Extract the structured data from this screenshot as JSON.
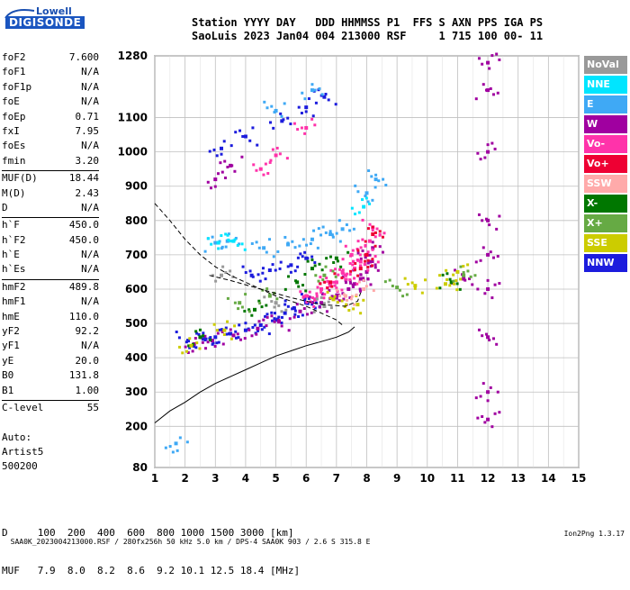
{
  "logo": {
    "line1": "Lowell",
    "line2": "DIGISONDE"
  },
  "header": {
    "line1": "Station YYYY DAY   DDD HHMMSS P1  FFS S AXN PPS IGA PS",
    "line2": "SaoLuis 2023 Jan04 004 213000 RSF     1 715 100 00- 11"
  },
  "params": {
    "group1": [
      {
        "k": "foF2",
        "v": "7.600"
      },
      {
        "k": "foF1",
        "v": "N/A"
      },
      {
        "k": "foF1p",
        "v": "N/A"
      },
      {
        "k": "foE",
        "v": "N/A"
      },
      {
        "k": "foEp",
        "v": "0.71"
      },
      {
        "k": "fxI",
        "v": "7.95"
      },
      {
        "k": "foEs",
        "v": "N/A"
      },
      {
        "k": "fmin",
        "v": "3.20"
      }
    ],
    "group2": [
      {
        "k": "MUF(D)",
        "v": "18.44"
      },
      {
        "k": "M(D)",
        "v": "2.43"
      },
      {
        "k": "D",
        "v": "N/A"
      }
    ],
    "group3": [
      {
        "k": "h`F",
        "v": "450.0"
      },
      {
        "k": "h`F2",
        "v": "450.0"
      },
      {
        "k": "h`E",
        "v": "N/A"
      },
      {
        "k": "h`Es",
        "v": "N/A"
      }
    ],
    "group4": [
      {
        "k": "hmF2",
        "v": "489.8"
      },
      {
        "k": "hmF1",
        "v": "N/A"
      },
      {
        "k": "hmE",
        "v": "110.0"
      },
      {
        "k": "yF2",
        "v": "92.2"
      },
      {
        "k": "yF1",
        "v": "N/A"
      },
      {
        "k": "yE",
        "v": "20.0"
      },
      {
        "k": "B0",
        "v": "131.8"
      },
      {
        "k": "B1",
        "v": "1.00"
      }
    ],
    "group5": [
      {
        "k": "C-level",
        "v": "55"
      }
    ]
  },
  "auto": {
    "line1": "Auto:",
    "line2": "Artist5",
    "line3": "500200"
  },
  "muf_table": {
    "d_line": "D     100  200  400  600  800 1000 1500 3000 [km]",
    "muf_line": "MUF   7.9  8.0  8.2  8.6  9.2 10.1 12.5 18.4 [MHz]"
  },
  "footer": {
    "left": "SAA0K_2023004213000.RSF / 280fx256h 50 kHz 5.0 km / DPS-4 SAA0K 903 / 2.6 S 315.8 E",
    "right": "Ion2Png 1.3.17"
  },
  "legend": [
    {
      "label": "NoVal",
      "color": "#999999"
    },
    {
      "label": "NNE",
      "color": "#00e5ff"
    },
    {
      "label": "E",
      "color": "#3fa9f5"
    },
    {
      "label": "W",
      "color": "#a000a0"
    },
    {
      "label": "Vo-",
      "color": "#ff33aa"
    },
    {
      "label": "Vo+",
      "color": "#ee0033"
    },
    {
      "label": "SSW",
      "color": "#ffaaaa"
    },
    {
      "label": "X-",
      "color": "#007700"
    },
    {
      "label": "X+",
      "color": "#66aa44"
    },
    {
      "label": "SSE",
      "color": "#cccc00"
    },
    {
      "label": "NNW",
      "color": "#1c1cdd"
    }
  ],
  "chart_data": {
    "type": "scatter",
    "xlim": [
      1,
      15
    ],
    "ylim": [
      80,
      1280
    ],
    "x_ticks": [
      "1",
      "2",
      "3",
      "4",
      "5",
      "6",
      "7",
      "8",
      "9",
      "10",
      "11",
      "12",
      "13",
      "14",
      "15"
    ],
    "y_ticks": [
      "80",
      "200",
      "300",
      "400",
      "500",
      "600",
      "700",
      "800",
      "900",
      "1000",
      "1100",
      "1280"
    ],
    "grid": true,
    "series": [
      {
        "name": "NNW",
        "color": "#1c1cdd",
        "points": [
          [
            2.1,
            450
          ],
          [
            2.6,
            455
          ],
          [
            3.0,
            460
          ],
          [
            3.5,
            470
          ],
          [
            4.0,
            480
          ],
          [
            4.5,
            495
          ],
          [
            5.0,
            510
          ],
          [
            5.3,
            530
          ],
          [
            5.6,
            545
          ],
          [
            6.0,
            560
          ],
          [
            6.3,
            570
          ],
          [
            4.2,
            640
          ],
          [
            4.8,
            655
          ],
          [
            5.5,
            670
          ],
          [
            6.0,
            690
          ],
          [
            3.2,
            1010
          ],
          [
            4.0,
            1045
          ],
          [
            5.2,
            1090
          ],
          [
            6.0,
            1130
          ],
          [
            6.6,
            1160
          ]
        ]
      },
      {
        "name": "W",
        "color": "#a000a0",
        "points": [
          [
            2.3,
            440
          ],
          [
            2.9,
            450
          ],
          [
            3.6,
            465
          ],
          [
            4.4,
            485
          ],
          [
            5.1,
            505
          ],
          [
            5.8,
            535
          ],
          [
            6.5,
            560
          ],
          [
            7.0,
            575
          ],
          [
            7.4,
            600
          ],
          [
            7.6,
            615
          ],
          [
            7.8,
            630
          ],
          [
            8.0,
            650
          ],
          [
            8.1,
            680
          ],
          [
            8.2,
            720
          ],
          [
            12.0,
            1260
          ],
          [
            12.0,
            1180
          ],
          [
            12.0,
            1000
          ],
          [
            12.0,
            800
          ],
          [
            12.0,
            700
          ],
          [
            12.0,
            600
          ],
          [
            12.0,
            460
          ],
          [
            12.0,
            300
          ],
          [
            12.0,
            220
          ],
          [
            11.2,
            630
          ],
          [
            3.0,
            920
          ],
          [
            3.5,
            960
          ]
        ]
      },
      {
        "name": "Vo-",
        "color": "#ff33aa",
        "points": [
          [
            6.0,
            580
          ],
          [
            6.5,
            600
          ],
          [
            7.0,
            620
          ],
          [
            7.3,
            640
          ],
          [
            7.6,
            660
          ],
          [
            7.8,
            680
          ],
          [
            8.0,
            700
          ],
          [
            8.1,
            740
          ],
          [
            8.2,
            780
          ],
          [
            7.5,
            700
          ],
          [
            7.2,
            650
          ],
          [
            6.8,
            610
          ],
          [
            6.3,
            570
          ],
          [
            4.5,
            950
          ],
          [
            5.0,
            990
          ],
          [
            6.0,
            1070
          ]
        ]
      },
      {
        "name": "Vo+",
        "color": "#ee0033",
        "points": [
          [
            7.8,
            660
          ],
          [
            8.0,
            700
          ],
          [
            8.2,
            760
          ],
          [
            6.8,
            620
          ]
        ]
      },
      {
        "name": "E",
        "color": "#3fa9f5",
        "points": [
          [
            3.0,
            735
          ],
          [
            3.4,
            740
          ],
          [
            4.6,
            720
          ],
          [
            5.4,
            730
          ],
          [
            6.2,
            745
          ],
          [
            6.8,
            760
          ],
          [
            7.2,
            775
          ],
          [
            8.0,
            880
          ],
          [
            8.3,
            920
          ],
          [
            1.7,
            150
          ],
          [
            5.0,
            1120
          ],
          [
            6.2,
            1180
          ]
        ]
      },
      {
        "name": "NNE",
        "color": "#00e5ff",
        "points": [
          [
            3.1,
            735
          ],
          [
            3.6,
            740
          ],
          [
            7.9,
            840
          ]
        ]
      },
      {
        "name": "X-",
        "color": "#007700",
        "points": [
          [
            2.5,
            460
          ],
          [
            4.3,
            540
          ],
          [
            5.7,
            620
          ],
          [
            6.2,
            660
          ],
          [
            7.0,
            690
          ],
          [
            10.8,
            620
          ]
        ]
      },
      {
        "name": "X+",
        "color": "#66aa44",
        "points": [
          [
            3.8,
            560
          ],
          [
            4.8,
            580
          ],
          [
            6.6,
            640
          ],
          [
            9.0,
            605
          ],
          [
            11.2,
            640
          ]
        ]
      },
      {
        "name": "SSE",
        "color": "#cccc00",
        "points": [
          [
            2.2,
            435
          ],
          [
            3.3,
            480
          ],
          [
            6.9,
            570
          ],
          [
            7.7,
            555
          ],
          [
            9.6,
            610
          ],
          [
            10.6,
            615
          ],
          [
            11.0,
            650
          ]
        ]
      },
      {
        "name": "SSW",
        "color": "#ffaaaa",
        "points": [
          [
            7.3,
            580
          ],
          [
            7.9,
            600
          ]
        ]
      },
      {
        "name": "NoVal",
        "color": "#999999",
        "points": [
          [
            3.2,
            640
          ],
          [
            5.0,
            560
          ],
          [
            6.6,
            550
          ]
        ]
      }
    ],
    "trace_curves": [
      {
        "style": "dashed",
        "points": [
          [
            1.0,
            850
          ],
          [
            1.5,
            800
          ],
          [
            2.0,
            745
          ],
          [
            2.5,
            700
          ],
          [
            3.0,
            665
          ],
          [
            3.5,
            640
          ],
          [
            4.0,
            620
          ],
          [
            4.5,
            600
          ],
          [
            5.0,
            580
          ],
          [
            5.5,
            565
          ],
          [
            6.0,
            550
          ],
          [
            6.5,
            530
          ],
          [
            7.0,
            510
          ],
          [
            7.2,
            495
          ]
        ]
      },
      {
        "style": "dashed",
        "points": [
          [
            2.8,
            640
          ],
          [
            3.5,
            625
          ],
          [
            4.5,
            600
          ],
          [
            5.5,
            575
          ],
          [
            6.5,
            555
          ],
          [
            7.3,
            550
          ],
          [
            7.7,
            565
          ],
          [
            7.8,
            590
          ]
        ]
      },
      {
        "style": "solid",
        "points": [
          [
            1.0,
            210
          ],
          [
            1.5,
            245
          ],
          [
            2.0,
            270
          ],
          [
            2.5,
            300
          ],
          [
            3.0,
            325
          ],
          [
            3.5,
            345
          ],
          [
            4.0,
            365
          ],
          [
            4.5,
            385
          ],
          [
            5.0,
            405
          ],
          [
            5.5,
            420
          ],
          [
            6.0,
            435
          ],
          [
            6.5,
            447
          ],
          [
            7.0,
            460
          ],
          [
            7.4,
            475
          ],
          [
            7.6,
            490
          ]
        ]
      }
    ]
  }
}
